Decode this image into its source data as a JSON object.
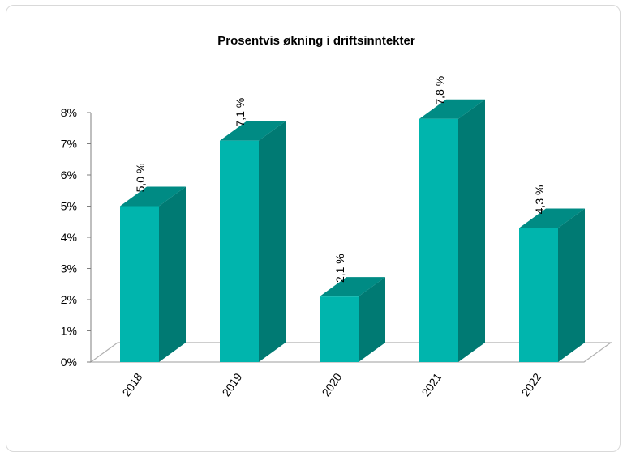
{
  "chart_data": {
    "type": "bar",
    "title": "Prosentvis økning i driftsinntekter",
    "xlabel": "",
    "ylabel": "",
    "categories": [
      "2018",
      "2019",
      "2020",
      "2021",
      "2022"
    ],
    "values": [
      5.0,
      7.1,
      2.1,
      7.8,
      4.3
    ],
    "data_labels": [
      "5,0 %",
      "7,1 %",
      "2,1 %",
      "7,8 %",
      "4,3 %"
    ],
    "yticks": [
      "0%",
      "1%",
      "2%",
      "3%",
      "4%",
      "5%",
      "6%",
      "7%",
      "8%"
    ],
    "ylim": [
      0,
      8
    ],
    "grid": false,
    "legend": "none",
    "style": "3d-column",
    "colors": {
      "front": "#00b5ad",
      "side": "#007a73",
      "top": "#008b84",
      "floor": "#b0b0b0"
    }
  }
}
